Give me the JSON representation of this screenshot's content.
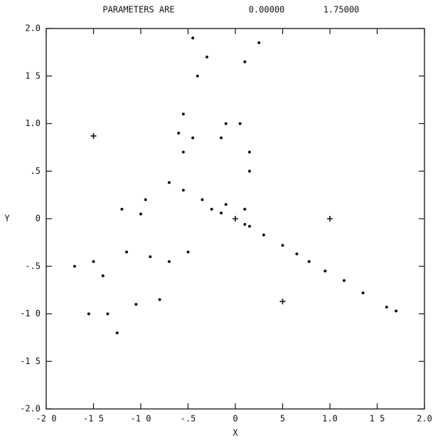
{
  "chart_data": {
    "type": "scatter",
    "title": "PARAMETERS ARE",
    "parameters": [
      "0.00000",
      "1.75000"
    ],
    "x_label": "X",
    "y_label": "Y",
    "xlim": [
      -2,
      2
    ],
    "ylim": [
      -2,
      2
    ],
    "xticks": [
      {
        "value": -2,
        "label": "-2 0"
      },
      {
        "value": -1.5,
        "label": "-1 5"
      },
      {
        "value": -1,
        "label": "-1 0"
      },
      {
        "value": -0.5,
        "label": "-.5"
      },
      0,
      {
        "value": 0.5,
        "label": "5"
      },
      {
        "value": 1,
        "label": "1.0"
      },
      {
        "value": 1.5,
        "label": "1 5"
      },
      {
        "value": 2,
        "label": "2.0"
      }
    ],
    "yticks": [
      {
        "value": -2,
        "label": "-2.0"
      },
      {
        "value": -1.5,
        "label": "-1 5"
      },
      {
        "value": -1,
        "label": "-1 0"
      },
      {
        "value": -0.5,
        "label": "-.5"
      },
      0,
      {
        "value": 0.5,
        "label": ".5"
      },
      {
        "value": 1,
        "label": "1.0"
      },
      {
        "value": 1.5,
        "label": "1 5"
      },
      {
        "value": 2,
        "label": "2.0"
      }
    ],
    "series": [
      {
        "marker": "plus",
        "color": "#111111",
        "x": [
          -1.5,
          0,
          1,
          0.5
        ],
        "values": [
          0.87,
          0,
          0,
          -0.87
        ]
      },
      {
        "marker": "dot",
        "color": "#111111",
        "x": [
          0.1,
          0.3,
          0.5,
          0.65,
          0.78,
          0.95,
          1.15,
          1.35,
          1.6,
          1.7,
          -0.15,
          -0.35,
          -0.55,
          -0.7,
          -0.25,
          0.1,
          0.15,
          -0.1,
          0.15,
          0.15,
          -0.15,
          -0.45,
          -0.6,
          -0.55,
          -0.1,
          0.05,
          -0.55,
          -0.4,
          -0.3,
          0.1,
          0.25,
          -0.45,
          -0.95,
          -1.0,
          -1.2,
          -0.9,
          -0.7,
          -1.15,
          -0.5,
          -1.5,
          -1.7,
          -1.4,
          -1.35,
          -1.55,
          -1.25,
          -1.05,
          -0.8
        ],
        "values": [
          -0.06,
          -0.17,
          -0.28,
          -0.37,
          -0.45,
          -0.55,
          -0.65,
          -0.78,
          -0.93,
          -0.97,
          0.06,
          0.2,
          0.3,
          0.38,
          0.1,
          0.1,
          -0.08,
          0.15,
          0.5,
          0.7,
          0.85,
          0.85,
          0.9,
          1.1,
          1.0,
          1.0,
          0.7,
          1.5,
          1.7,
          1.65,
          1.85,
          1.9,
          0.2,
          0.05,
          0.1,
          -0.4,
          -0.45,
          -0.35,
          -0.35,
          -0.45,
          -0.5,
          -0.6,
          -1.0,
          -1.0,
          -1.2,
          -0.9,
          -0.85
        ]
      }
    ]
  }
}
